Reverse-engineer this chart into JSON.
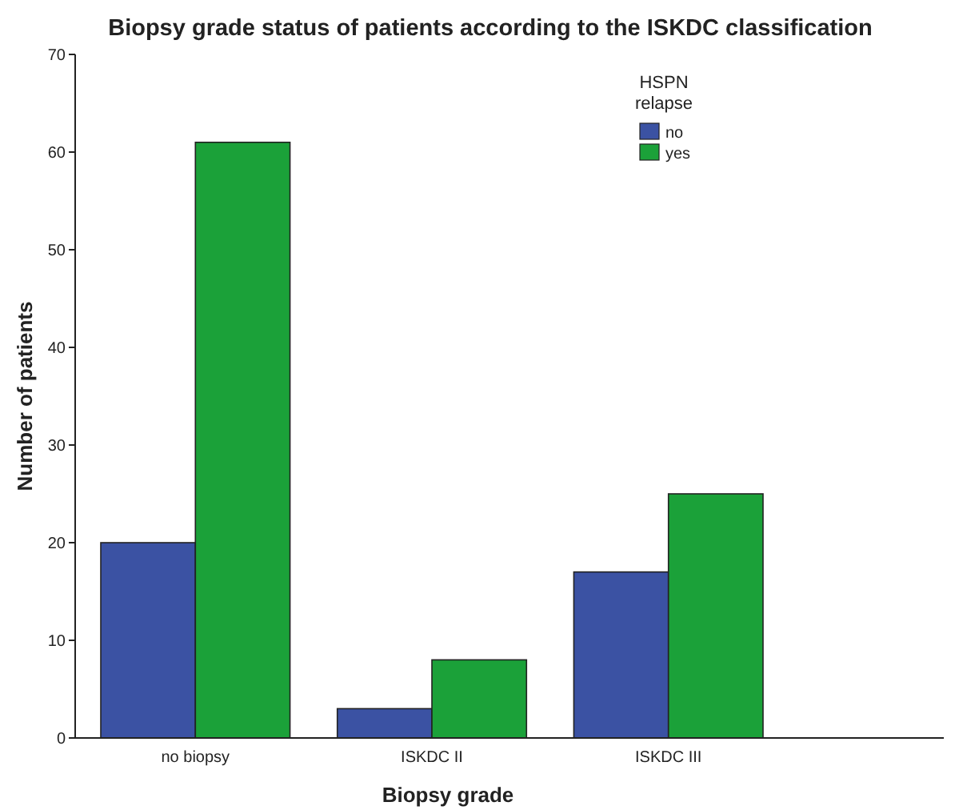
{
  "chart_data": {
    "type": "bar",
    "title": "Biopsy grade status of patients according to the ISKDC classification",
    "xlabel": "Biopsy grade",
    "ylabel": "Number of patients",
    "legend_title": "HSPN relapse",
    "categories": [
      "no biopsy",
      "ISKDC II",
      "ISKDC III"
    ],
    "series": [
      {
        "name": "no",
        "color": "#3b52a3",
        "values": [
          20,
          3,
          17
        ]
      },
      {
        "name": "yes",
        "color": "#1ba139",
        "values": [
          61,
          8,
          25
        ]
      }
    ],
    "ylim": [
      0,
      70
    ],
    "yticks": [
      0,
      10,
      20,
      30,
      40,
      50,
      60,
      70
    ],
    "legend": "top right",
    "grid": false
  }
}
